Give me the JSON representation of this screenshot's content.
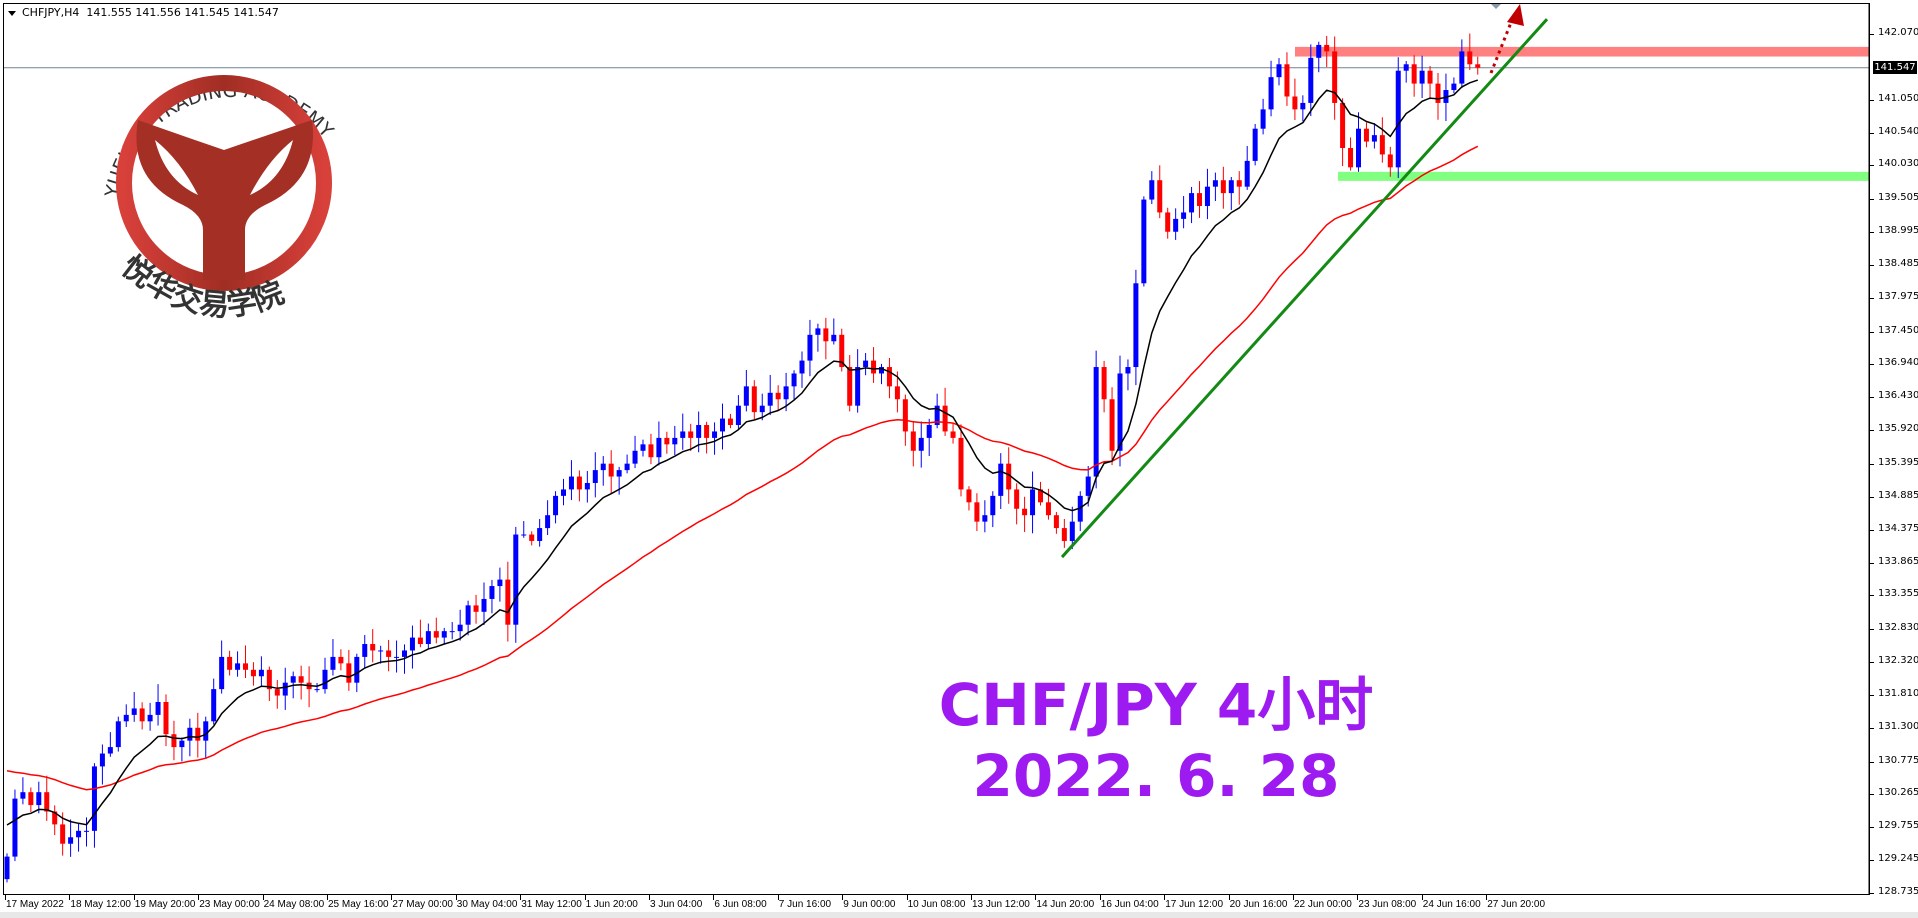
{
  "header": {
    "symbol": "CHFJPY,H4",
    "ohlc": "141.555 141.556 141.545 141.547"
  },
  "logo": {
    "english": "YUEHUA TRADING ACADEMY",
    "chinese": "悦华交易学院",
    "color": "#a8302a"
  },
  "annotation": {
    "line1": "CHF/JPY 4小时",
    "line2": "2022. 6. 28",
    "color": "#9d1bf0"
  },
  "price_axis": {
    "ticks": [
      "142.070",
      "141.050",
      "140.540",
      "140.030",
      "139.505",
      "138.995",
      "138.485",
      "137.975",
      "137.450",
      "136.940",
      "136.430",
      "135.920",
      "135.395",
      "134.885",
      "134.375",
      "133.865",
      "133.355",
      "132.830",
      "132.320",
      "131.810",
      "131.300",
      "130.775",
      "130.265",
      "129.755",
      "129.245",
      "128.735"
    ],
    "current_price": "141.547"
  },
  "time_axis": {
    "labels": [
      "17 May 2022",
      "18 May 12:00",
      "19 May 20:00",
      "23 May 00:00",
      "24 May 08:00",
      "25 May 16:00",
      "27 May 00:00",
      "30 May 04:00",
      "31 May 12:00",
      "1 Jun 20:00",
      "3 Jun 04:00",
      "6 Jun 08:00",
      "7 Jun 16:00",
      "9 Jun 00:00",
      "10 Jun 08:00",
      "13 Jun 12:00",
      "14 Jun 20:00",
      "16 Jun 04:00",
      "17 Jun 12:00",
      "20 Jun 16:00",
      "22 Jun 00:00",
      "23 Jun 08:00",
      "24 Jun 16:00",
      "27 Jun 20:00"
    ]
  },
  "chart_data": {
    "type": "candlestick",
    "timeframe": "H4",
    "ylim": [
      128.735,
      142.07
    ],
    "up_color": "#0000ff",
    "down_color": "#ff0000",
    "fast_ma_color": "#000000",
    "slow_ma_color": "#ff0000",
    "closes": [
      129.3,
      130.2,
      130.3,
      130.1,
      130.3,
      130.0,
      129.8,
      129.5,
      129.6,
      129.7,
      129.7,
      130.7,
      130.9,
      131.0,
      131.4,
      131.5,
      131.6,
      131.4,
      131.5,
      131.7,
      131.2,
      131.0,
      131.1,
      131.3,
      131.1,
      131.4,
      131.9,
      132.4,
      132.2,
      132.3,
      132.2,
      132.1,
      132.2,
      131.9,
      131.8,
      132.0,
      132.1,
      132.0,
      131.9,
      131.9,
      132.2,
      132.4,
      132.3,
      132.0,
      132.4,
      132.6,
      132.5,
      132.5,
      132.4,
      132.4,
      132.5,
      132.7,
      132.6,
      132.8,
      132.7,
      132.8,
      132.8,
      132.9,
      133.2,
      133.1,
      133.3,
      133.5,
      133.6,
      132.9,
      134.3,
      134.3,
      134.2,
      134.4,
      134.6,
      134.9,
      135.0,
      135.2,
      135.0,
      135.1,
      135.3,
      135.4,
      135.2,
      135.3,
      135.4,
      135.6,
      135.7,
      135.5,
      135.8,
      135.7,
      135.8,
      135.9,
      135.8,
      136.0,
      135.8,
      135.9,
      136.1,
      136.0,
      136.3,
      136.6,
      136.2,
      136.3,
      136.5,
      136.4,
      136.6,
      136.8,
      137.0,
      137.4,
      137.5,
      137.3,
      137.4,
      136.9,
      136.3,
      136.9,
      137.0,
      136.8,
      136.9,
      136.6,
      136.4,
      135.9,
      135.6,
      135.8,
      136.0,
      136.3,
      135.9,
      135.8,
      135.0,
      134.8,
      134.5,
      134.6,
      134.9,
      135.4,
      135.0,
      134.7,
      134.6,
      135.0,
      134.8,
      134.6,
      134.4,
      134.2,
      134.5,
      134.9,
      135.2,
      136.9,
      136.4,
      135.6,
      136.8,
      136.9,
      138.2,
      139.5,
      139.8,
      139.3,
      139.0,
      139.2,
      139.3,
      139.6,
      139.4,
      139.7,
      139.8,
      139.6,
      139.8,
      139.7,
      140.1,
      140.6,
      140.9,
      141.4,
      141.6,
      141.1,
      140.9,
      141.0,
      141.7,
      141.9,
      141.8,
      141.0,
      140.3,
      140.0,
      140.6,
      140.4,
      140.5,
      140.2,
      140.0,
      141.5,
      141.6,
      141.3,
      141.5,
      141.3,
      141.0,
      141.2,
      141.3,
      141.8,
      141.6,
      141.547
    ],
    "resistance_zone": {
      "from": 141.72,
      "to": 141.87,
      "color": "#ff8080"
    },
    "support_zone": {
      "from": 139.79,
      "to": 139.93,
      "color": "#80ff80"
    },
    "trendline": {
      "color": "#138a13",
      "start_price": 133.95,
      "end_price": 142.3
    },
    "current_price_line": 141.547
  }
}
